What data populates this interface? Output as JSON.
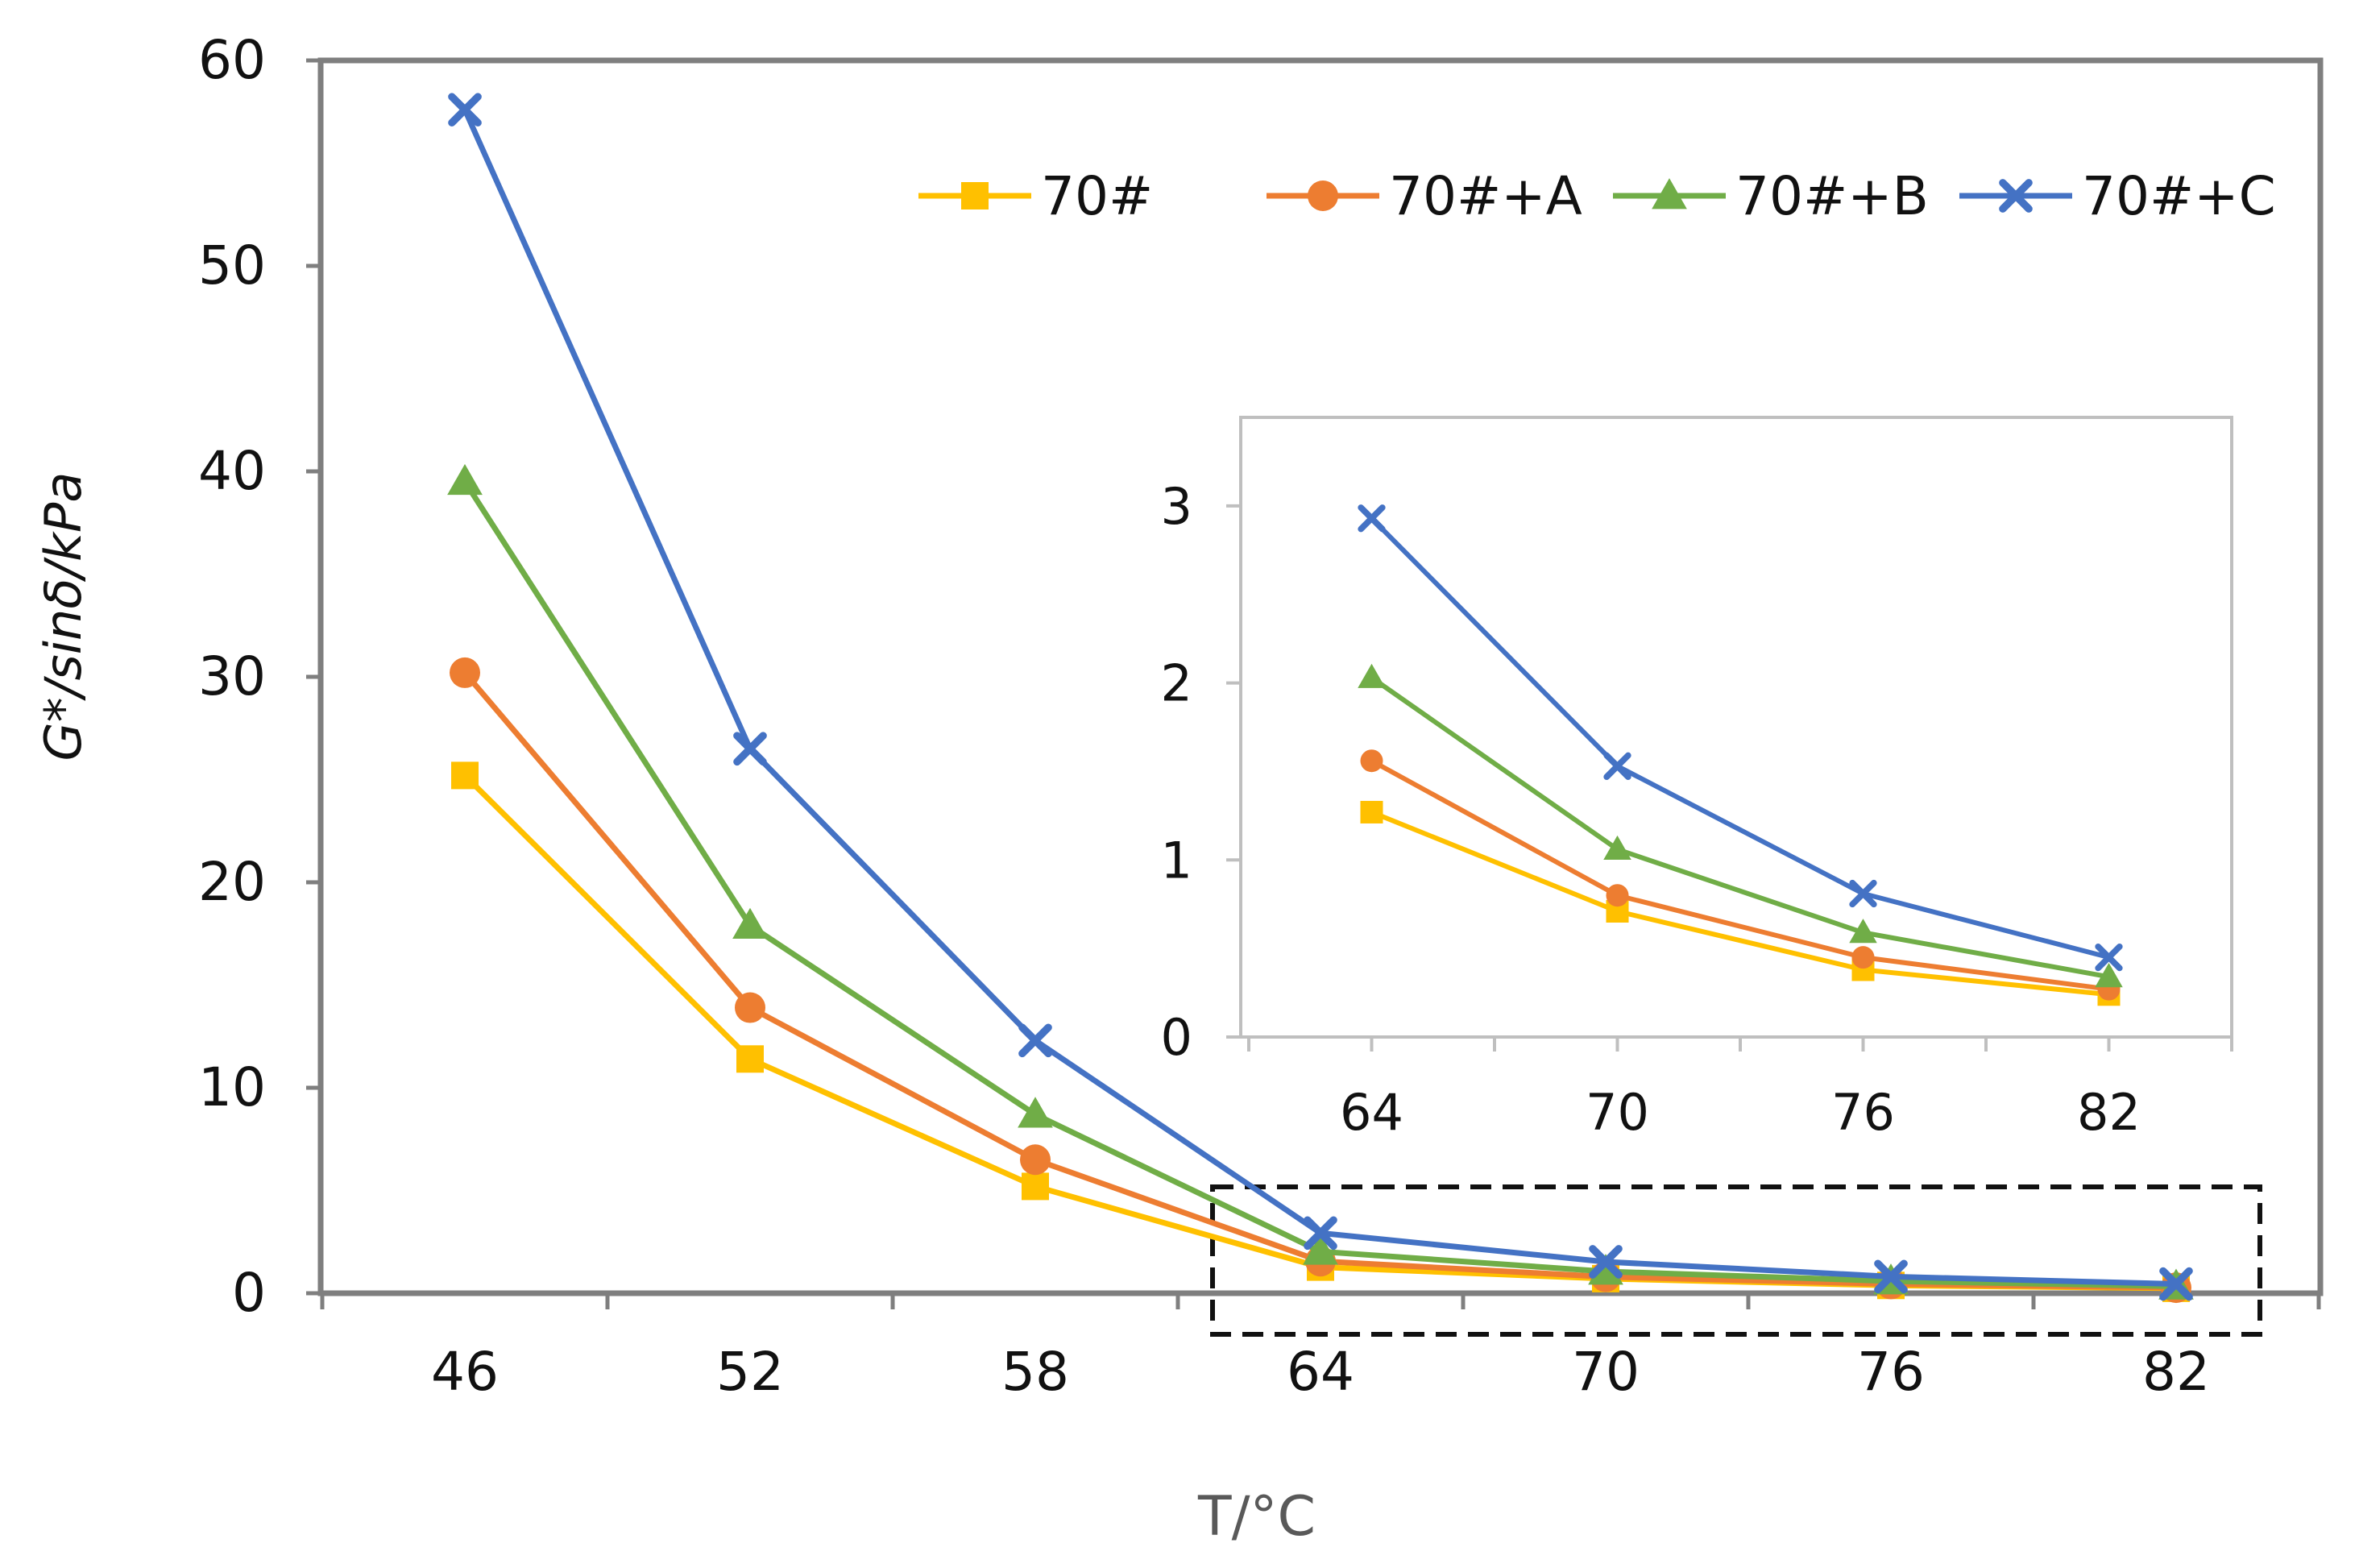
{
  "chart_data": [
    {
      "type": "line",
      "title": "",
      "xlabel": "T/°C",
      "ylabel": "G*/sinδ/kPa",
      "x": [
        46,
        52,
        58,
        64,
        70,
        76,
        82
      ],
      "x_tick_labels": [
        "46",
        "52",
        "58",
        "64",
        "70",
        "76",
        "82"
      ],
      "y_tick_labels": [
        "0",
        "10",
        "20",
        "30",
        "40",
        "50",
        "60"
      ],
      "ylim": [
        0,
        60
      ],
      "grid": false,
      "legend_position": "top-right",
      "series": [
        {
          "name": "70#",
          "color": "#FFC000",
          "marker": "square",
          "values": [
            25.2,
            11.4,
            5.2,
            1.27,
            0.71,
            0.38,
            0.24
          ]
        },
        {
          "name": "70#+A",
          "color": "#ED7D31",
          "marker": "circle",
          "values": [
            30.2,
            13.9,
            6.5,
            1.56,
            0.8,
            0.45,
            0.27
          ]
        },
        {
          "name": "70#+B",
          "color": "#70AD47",
          "marker": "triangle",
          "values": [
            39.5,
            17.9,
            8.7,
            2.03,
            1.06,
            0.59,
            0.34
          ]
        },
        {
          "name": "70#+C",
          "color": "#4472C4",
          "marker": "x",
          "values": [
            57.6,
            26.5,
            12.3,
            2.93,
            1.53,
            0.81,
            0.45
          ]
        }
      ]
    },
    {
      "type": "line",
      "title": "",
      "xlabel": "",
      "ylabel": "",
      "x": [
        64,
        70,
        76,
        82
      ],
      "x_tick_labels": [
        "64",
        "70",
        "76",
        "82"
      ],
      "y_tick_labels": [
        "0",
        "1",
        "2",
        "3"
      ],
      "ylim": [
        0,
        3.5
      ],
      "grid": false,
      "legend_position": "none",
      "series": [
        {
          "name": "70#",
          "color": "#FFC000",
          "marker": "square",
          "values": [
            1.27,
            0.71,
            0.38,
            0.24
          ]
        },
        {
          "name": "70#+A",
          "color": "#ED7D31",
          "marker": "circle",
          "values": [
            1.56,
            0.8,
            0.45,
            0.27
          ]
        },
        {
          "name": "70#+B",
          "color": "#70AD47",
          "marker": "triangle",
          "values": [
            2.03,
            1.06,
            0.59,
            0.34
          ]
        },
        {
          "name": "70#+C",
          "color": "#4472C4",
          "marker": "x",
          "values": [
            2.93,
            1.53,
            0.81,
            0.45
          ]
        }
      ]
    }
  ]
}
